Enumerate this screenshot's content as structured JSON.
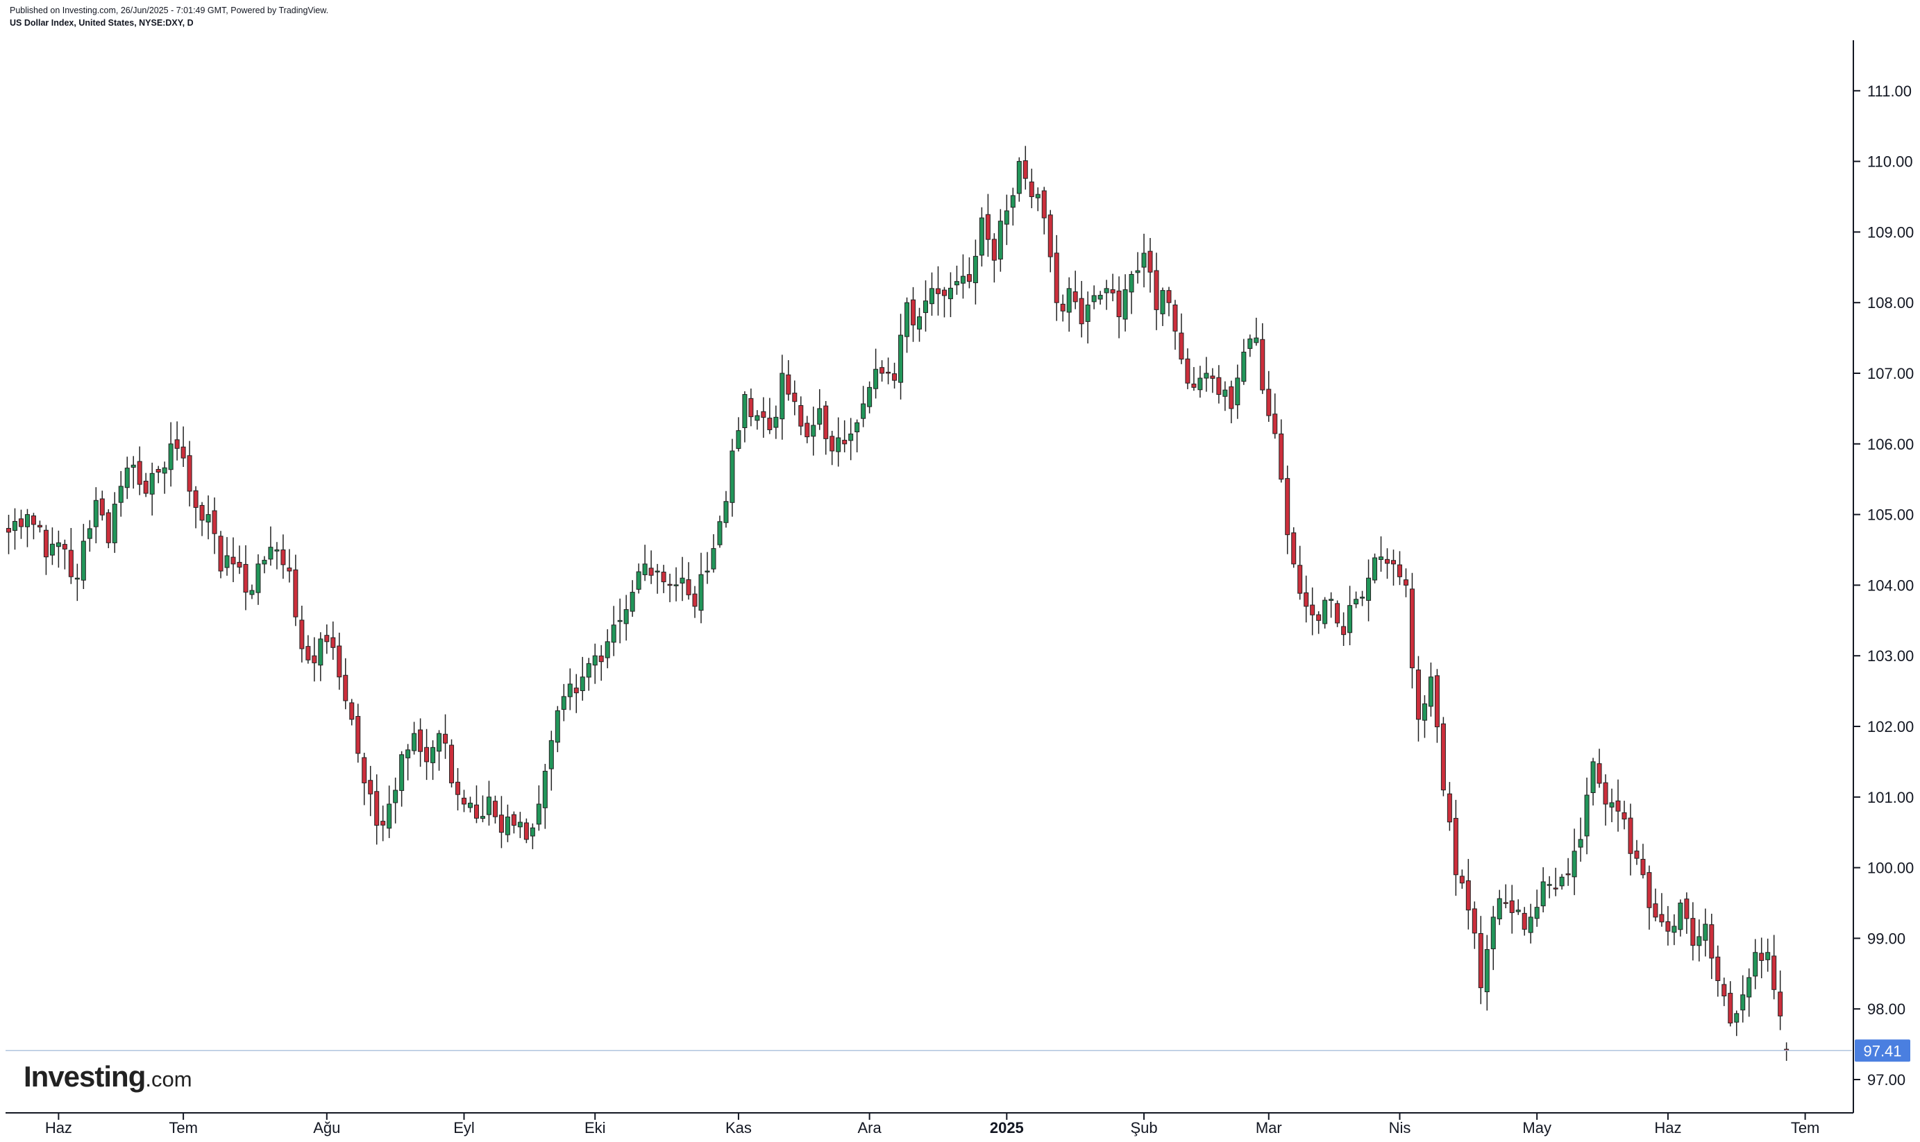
{
  "header": {
    "published": "Published on Investing.com, 26/Jun/2025 - 7:01:49 GMT, Powered by TradingView.",
    "symbol": "US Dollar Index, United States, NYSE:DXY, D"
  },
  "branding": {
    "name": "Investing",
    "suffix": ".com"
  },
  "colors": {
    "up": "#22965a",
    "down": "#cc2f3c",
    "wick": "#222222",
    "price_line": "#b0c4de",
    "price_label_bg": "#4a7fe0"
  },
  "last_price_label": "97.41",
  "chart_data": {
    "type": "candlestick",
    "title": "",
    "xlabel": "",
    "ylabel": "",
    "ylim": [
      96.55,
      111.72
    ],
    "y_ticks": [
      "111.00",
      "110.00",
      "109.00",
      "108.00",
      "107.00",
      "106.00",
      "105.00",
      "104.00",
      "103.00",
      "102.00",
      "101.00",
      "100.00",
      "99.00",
      "98.00",
      "97.00"
    ],
    "x_ticks": [
      {
        "label": "Haz",
        "x": 0
      },
      {
        "label": "Tem",
        "x": 20
      },
      {
        "label": "Ağu",
        "x": 43
      },
      {
        "label": "Eyl",
        "x": 65
      },
      {
        "label": "Eki",
        "x": 86
      },
      {
        "label": "Kas",
        "x": 109
      },
      {
        "label": "Ara",
        "x": 130
      },
      {
        "label": "2025",
        "x": 152,
        "bold": true
      },
      {
        "label": "Şub",
        "x": 174
      },
      {
        "label": "Mar",
        "x": 194
      },
      {
        "label": "Nis",
        "x": 215
      },
      {
        "label": "May",
        "x": 237
      },
      {
        "label": "Haz",
        "x": 258
      },
      {
        "label": "Tem",
        "x": 280
      }
    ],
    "x_range": [
      -8.5,
      287.5
    ],
    "last_value": 97.41,
    "anchors": [
      [
        -8,
        104.75
      ],
      [
        -5,
        105.0
      ],
      [
        -2,
        104.4
      ],
      [
        0,
        104.6
      ],
      [
        3,
        104.1
      ],
      [
        5,
        104.8
      ],
      [
        6,
        105.2
      ],
      [
        8,
        104.6
      ],
      [
        10,
        105.4
      ],
      [
        12,
        105.7
      ],
      [
        14,
        105.3
      ],
      [
        16,
        105.6
      ],
      [
        18,
        106.0
      ],
      [
        20,
        105.8
      ],
      [
        22,
        105.1
      ],
      [
        24,
        105.0
      ],
      [
        26,
        104.2
      ],
      [
        28,
        104.3
      ],
      [
        30,
        103.9
      ],
      [
        32,
        104.3
      ],
      [
        35,
        104.5
      ],
      [
        37,
        104.2
      ],
      [
        39,
        103.1
      ],
      [
        41,
        102.9
      ],
      [
        43,
        103.2
      ],
      [
        45,
        102.7
      ],
      [
        47,
        102.1
      ],
      [
        49,
        101.2
      ],
      [
        51,
        100.6
      ],
      [
        53,
        100.9
      ],
      [
        55,
        101.6
      ],
      [
        57,
        101.9
      ],
      [
        59,
        101.5
      ],
      [
        61,
        101.9
      ],
      [
        63,
        101.2
      ],
      [
        65,
        100.9
      ],
      [
        67,
        100.7
      ],
      [
        69,
        101.0
      ],
      [
        71,
        100.5
      ],
      [
        73,
        100.6
      ],
      [
        75,
        100.4
      ],
      [
        77,
        100.9
      ],
      [
        79,
        101.8
      ],
      [
        82,
        102.6
      ],
      [
        84,
        102.7
      ],
      [
        86,
        103.0
      ],
      [
        88,
        103.2
      ],
      [
        90,
        103.5
      ],
      [
        92,
        103.9
      ],
      [
        94,
        104.3
      ],
      [
        96,
        104.2
      ],
      [
        98,
        104.0
      ],
      [
        100,
        104.1
      ],
      [
        102,
        103.7
      ],
      [
        104,
        104.2
      ],
      [
        106,
        104.9
      ],
      [
        108,
        105.9
      ],
      [
        110,
        106.7
      ],
      [
        112,
        106.4
      ],
      [
        114,
        106.2
      ],
      [
        116,
        107.0
      ],
      [
        118,
        106.6
      ],
      [
        120,
        106.1
      ],
      [
        122,
        106.5
      ],
      [
        124,
        105.9
      ],
      [
        126,
        106.0
      ],
      [
        128,
        106.3
      ],
      [
        130,
        106.8
      ],
      [
        132,
        107.0
      ],
      [
        134,
        106.9
      ],
      [
        136,
        108.0
      ],
      [
        138,
        107.8
      ],
      [
        140,
        108.2
      ],
      [
        142,
        108.1
      ],
      [
        144,
        108.3
      ],
      [
        146,
        108.3
      ],
      [
        148,
        109.2
      ],
      [
        150,
        108.6
      ],
      [
        152,
        109.3
      ],
      [
        154,
        110.0
      ],
      [
        156,
        109.5
      ],
      [
        158,
        109.2
      ],
      [
        160,
        108.0
      ],
      [
        162,
        108.2
      ],
      [
        164,
        107.7
      ],
      [
        166,
        108.1
      ],
      [
        168,
        108.2
      ],
      [
        170,
        107.8
      ],
      [
        172,
        108.4
      ],
      [
        174,
        108.7
      ],
      [
        176,
        107.9
      ],
      [
        178,
        108.0
      ],
      [
        180,
        107.2
      ],
      [
        182,
        106.8
      ],
      [
        184,
        107.0
      ],
      [
        186,
        106.7
      ],
      [
        188,
        106.5
      ],
      [
        190,
        107.3
      ],
      [
        192,
        107.5
      ],
      [
        194,
        106.4
      ],
      [
        196,
        105.5
      ],
      [
        198,
        104.3
      ],
      [
        200,
        103.7
      ],
      [
        202,
        103.5
      ],
      [
        204,
        103.8
      ],
      [
        206,
        103.3
      ],
      [
        208,
        103.8
      ],
      [
        210,
        104.1
      ],
      [
        212,
        104.4
      ],
      [
        214,
        104.3
      ],
      [
        216,
        104.0
      ],
      [
        218,
        102.1
      ],
      [
        220,
        102.7
      ],
      [
        222,
        101.1
      ],
      [
        224,
        99.9
      ],
      [
        226,
        99.4
      ],
      [
        228,
        98.3
      ],
      [
        230,
        99.3
      ],
      [
        232,
        99.5
      ],
      [
        234,
        99.4
      ],
      [
        236,
        99.3
      ],
      [
        238,
        99.8
      ],
      [
        240,
        99.7
      ],
      [
        242,
        99.9
      ],
      [
        244,
        100.4
      ],
      [
        246,
        101.5
      ],
      [
        248,
        100.9
      ],
      [
        250,
        100.8
      ],
      [
        252,
        100.2
      ],
      [
        254,
        99.9
      ],
      [
        256,
        99.3
      ],
      [
        258,
        99.1
      ],
      [
        260,
        99.5
      ],
      [
        262,
        98.9
      ],
      [
        264,
        99.2
      ],
      [
        266,
        98.4
      ],
      [
        268,
        97.8
      ],
      [
        270,
        98.2
      ],
      [
        272,
        98.8
      ],
      [
        274,
        98.8
      ],
      [
        276,
        97.9
      ],
      [
        277,
        97.41
      ]
    ]
  }
}
